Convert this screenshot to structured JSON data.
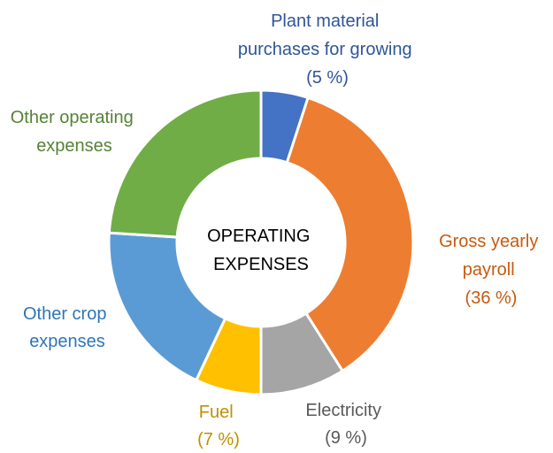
{
  "chart_data": {
    "type": "donut",
    "title": "",
    "center_text": [
      "OPERATING",
      "EXPENSES"
    ],
    "slices": [
      {
        "key": "plant",
        "value": 5,
        "color": "#4472C4",
        "label_lines": [
          "Plant material",
          "purchases for growing",
          "(5 %)"
        ]
      },
      {
        "key": "payroll",
        "value": 36,
        "color": "#ED7D31",
        "label_lines": [
          "Gross yearly",
          "payroll",
          "(36 %)"
        ]
      },
      {
        "key": "electricity",
        "value": 9,
        "color": "#A5A5A5",
        "label_lines": [
          "Electricity",
          "(9 %)"
        ]
      },
      {
        "key": "fuel",
        "value": 7,
        "color": "#FFC000",
        "label_lines": [
          "Fuel",
          "(7 %)"
        ]
      },
      {
        "key": "other-crop",
        "value": 19,
        "color": "#5B9BD5",
        "label_lines": [
          "Other crop",
          "expenses"
        ]
      },
      {
        "key": "other-operating",
        "value": 24,
        "color": "#70AD47",
        "label_lines": [
          "Other operating",
          "expenses"
        ]
      }
    ],
    "label_colors": {
      "plant": "#2F5597",
      "payroll": "#C55A11",
      "electricity": "#595959",
      "fuel": "#BF9000",
      "other-crop": "#2E75B6",
      "other-operating": "#548235"
    }
  }
}
